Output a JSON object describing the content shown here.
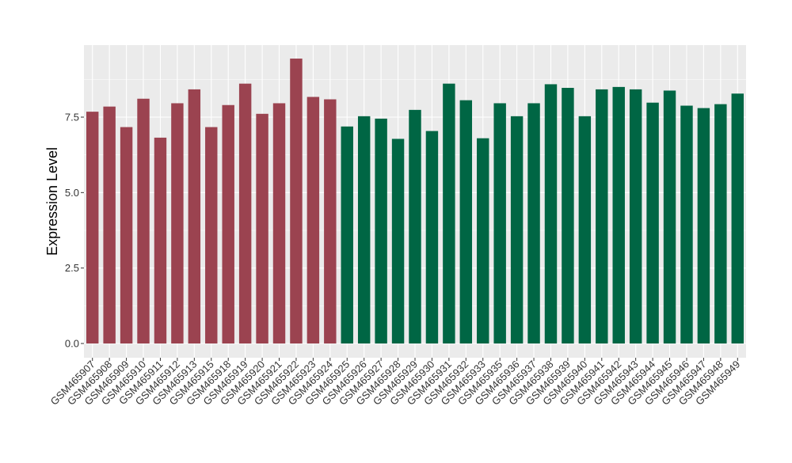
{
  "chart_data": {
    "type": "bar",
    "title": "",
    "xlabel": "",
    "ylabel": "Expression Level",
    "ylim": [
      0,
      9.9
    ],
    "yticks": [
      0.0,
      2.5,
      5.0,
      7.5
    ],
    "ytick_labels": [
      "0.0",
      "2.5",
      "5.0",
      "7.5"
    ],
    "grid": true,
    "legend": "none",
    "categories": [
      "GSM465907",
      "GSM465908",
      "GSM465909",
      "GSM465910",
      "GSM465911",
      "GSM465912",
      "GSM465913",
      "GSM465915",
      "GSM465918",
      "GSM465919",
      "GSM465920",
      "GSM465921",
      "GSM465922",
      "GSM465923",
      "GSM465924",
      "GSM465925",
      "GSM465926",
      "GSM465927",
      "GSM465928",
      "GSM465929",
      "GSM465930",
      "GSM465931",
      "GSM465932",
      "GSM465933",
      "GSM465935",
      "GSM465936",
      "GSM465937",
      "GSM465938",
      "GSM465939",
      "GSM465940",
      "GSM465941",
      "GSM465942",
      "GSM465943",
      "GSM465944",
      "GSM465945",
      "GSM465946",
      "GSM465947",
      "GSM465948",
      "GSM465949"
    ],
    "values": [
      7.68,
      7.85,
      7.17,
      8.11,
      6.82,
      7.96,
      8.42,
      7.17,
      7.9,
      8.61,
      7.61,
      7.96,
      9.44,
      8.17,
      8.09,
      7.19,
      7.53,
      7.45,
      6.78,
      7.74,
      7.04,
      8.61,
      8.06,
      6.8,
      7.96,
      7.53,
      7.96,
      8.59,
      8.47,
      7.53,
      8.42,
      8.5,
      8.42,
      7.98,
      8.38,
      7.88,
      7.8,
      7.93,
      8.28
    ],
    "groups": [
      0,
      0,
      0,
      0,
      0,
      0,
      0,
      0,
      0,
      0,
      0,
      0,
      0,
      0,
      0,
      1,
      1,
      1,
      1,
      1,
      1,
      1,
      1,
      1,
      1,
      1,
      1,
      1,
      1,
      1,
      1,
      1,
      1,
      1,
      1,
      1,
      1,
      1,
      1
    ],
    "group_colors": [
      "#9b4350",
      "#006644"
    ],
    "panel_background": "#ebebeb",
    "grid_color": "#ffffff"
  }
}
